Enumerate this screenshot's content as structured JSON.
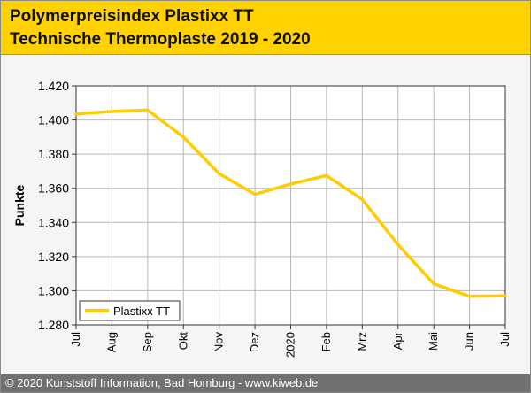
{
  "header": {
    "title": "Polymerpreisindex Plastixx TT",
    "subtitle": "Technische Thermoplaste 2019 - 2020"
  },
  "footer": {
    "copyright": "© 2020 Kunststoff Information, Bad Homburg - www.kiweb.de"
  },
  "colors": {
    "brand_yellow": "#ffd200",
    "series_line": "#ffcc00",
    "footer_bg": "#707070",
    "page_bg": "#f5f5f5"
  },
  "chart_data": {
    "type": "line",
    "title": "",
    "xlabel": "",
    "ylabel": "Punkte",
    "categories": [
      "Jul",
      "Aug",
      "Sep",
      "Okt",
      "Nov",
      "Dez",
      "2020",
      "Feb",
      "Mrz",
      "Apr",
      "Mai",
      "Jun",
      "Jul"
    ],
    "y_ticks": [
      1.28,
      1.3,
      1.32,
      1.34,
      1.36,
      1.38,
      1.4,
      1.42
    ],
    "y_tick_labels": [
      "1.280",
      "1.300",
      "1.320",
      "1.340",
      "1.360",
      "1.380",
      "1.400",
      "1.420"
    ],
    "ylim": [
      1.28,
      1.42
    ],
    "grid": true,
    "legend_position": "bottom-left",
    "series": [
      {
        "name": "Plastixx TT",
        "values": [
          1.4035,
          1.405,
          1.4058,
          1.39,
          1.3685,
          1.3565,
          1.3625,
          1.3675,
          1.3535,
          1.327,
          1.304,
          1.2967,
          1.297
        ]
      }
    ]
  }
}
